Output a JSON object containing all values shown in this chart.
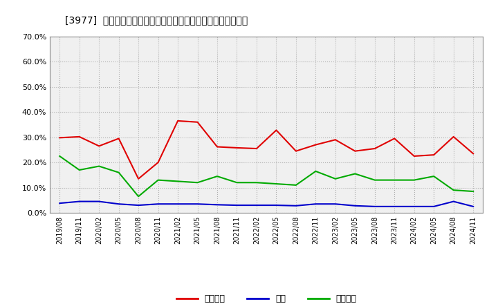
{
  "title": "[3977]  売上債権、在庫、買入債務の総資産に対する比率の推移",
  "x_labels": [
    "2019/08",
    "2019/11",
    "2020/02",
    "2020/05",
    "2020/08",
    "2020/11",
    "2021/02",
    "2021/05",
    "2021/08",
    "2021/11",
    "2022/02",
    "2022/05",
    "2022/08",
    "2022/11",
    "2023/02",
    "2023/05",
    "2023/08",
    "2023/11",
    "2024/02",
    "2024/05",
    "2024/08",
    "2024/11"
  ],
  "receivables": [
    29.8,
    30.2,
    26.5,
    29.5,
    13.5,
    20.0,
    36.5,
    36.0,
    26.2,
    25.8,
    25.5,
    32.8,
    24.5,
    27.0,
    29.0,
    24.5,
    25.5,
    29.5,
    22.5,
    23.0,
    30.2,
    23.5
  ],
  "inventory": [
    3.8,
    4.5,
    4.5,
    3.5,
    3.0,
    3.5,
    3.5,
    3.5,
    3.2,
    3.0,
    3.0,
    3.0,
    2.8,
    3.5,
    3.5,
    2.8,
    2.5,
    2.5,
    2.5,
    2.5,
    4.5,
    2.5
  ],
  "payables": [
    22.5,
    17.0,
    18.5,
    16.0,
    6.5,
    13.0,
    12.5,
    12.0,
    14.5,
    12.0,
    12.0,
    11.5,
    11.0,
    16.5,
    13.5,
    15.5,
    13.0,
    13.0,
    13.0,
    14.5,
    9.0,
    8.5
  ],
  "receivables_color": "#e00000",
  "inventory_color": "#0000cc",
  "payables_color": "#00aa00",
  "legend_labels": [
    "売上債権",
    "在庫",
    "買入債務"
  ],
  "ylim": [
    0.0,
    70.0
  ],
  "yticks": [
    0.0,
    10.0,
    20.0,
    30.0,
    40.0,
    50.0,
    60.0,
    70.0
  ],
  "bg_color": "#ffffff",
  "grid_color": "#aaaaaa"
}
